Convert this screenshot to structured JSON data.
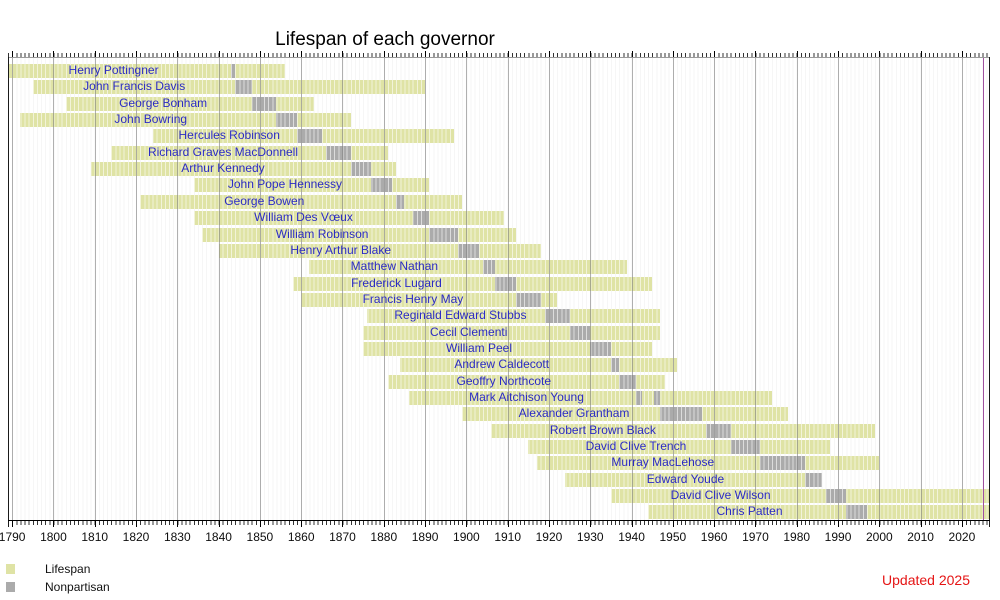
{
  "title": "Lifespan of each governor",
  "legend": {
    "items": [
      {
        "label": "Lifespan",
        "color": "#dfe3a5"
      },
      {
        "label": "Nonpartisan",
        "color": "#ababab"
      }
    ]
  },
  "footer_note": {
    "text": "Updated 2025",
    "color": "#e51414"
  },
  "chart_data": {
    "type": "timeline",
    "title": "Lifespan of each governor",
    "legend_position": "bottom-left",
    "grid": true,
    "x_axis": {
      "min": 1789,
      "max": 2026.8,
      "major_tick_interval": 10,
      "minor_tick_interval": 1,
      "tick_labels": [
        1790,
        1800,
        1810,
        1820,
        1830,
        1840,
        1850,
        1860,
        1870,
        1880,
        1890,
        1900,
        1910,
        1920,
        1930,
        1940,
        1950,
        1960,
        1970,
        1980,
        1990,
        2000,
        2010,
        2020
      ]
    },
    "present_line_year": 2025,
    "colors": {
      "lifespan_bar": "#dfe3a5",
      "nonpartisan_bar": "#ababab",
      "name_text": "#2b2bc4",
      "present_line": "#a050a0",
      "updated_note": "#e51414"
    },
    "governors": [
      {
        "name": "Henry Pottingner",
        "born": 1789,
        "died": 1856,
        "terms": [
          [
            1843,
            1844
          ]
        ]
      },
      {
        "name": "John Francis Davis",
        "born": 1795,
        "died": 1890,
        "terms": [
          [
            1844,
            1848
          ]
        ]
      },
      {
        "name": "George Bonham",
        "born": 1803,
        "died": 1863,
        "terms": [
          [
            1848,
            1854
          ]
        ]
      },
      {
        "name": "John Bowring",
        "born": 1792,
        "died": 1872,
        "terms": [
          [
            1854,
            1859
          ]
        ]
      },
      {
        "name": "Hercules Robinson",
        "born": 1824,
        "died": 1897,
        "terms": [
          [
            1859,
            1865
          ]
        ]
      },
      {
        "name": "Richard Graves MacDonnell",
        "born": 1814,
        "died": 1881,
        "terms": [
          [
            1866,
            1872
          ]
        ]
      },
      {
        "name": "Arthur Kennedy",
        "born": 1809,
        "died": 1883,
        "terms": [
          [
            1872,
            1877
          ]
        ]
      },
      {
        "name": "John Pope Hennessy",
        "born": 1834,
        "died": 1891,
        "terms": [
          [
            1877,
            1882
          ]
        ]
      },
      {
        "name": "George Bowen",
        "born": 1821,
        "died": 1899,
        "terms": [
          [
            1883,
            1885
          ]
        ]
      },
      {
        "name": "William Des Vœux",
        "born": 1834,
        "died": 1909,
        "terms": [
          [
            1887,
            1891
          ]
        ]
      },
      {
        "name": "William Robinson",
        "born": 1836,
        "died": 1912,
        "terms": [
          [
            1891,
            1898
          ]
        ]
      },
      {
        "name": "Henry Arthur Blake",
        "born": 1840,
        "died": 1918,
        "terms": [
          [
            1898,
            1903
          ]
        ]
      },
      {
        "name": "Matthew Nathan",
        "born": 1862,
        "died": 1939,
        "terms": [
          [
            1904,
            1907
          ]
        ]
      },
      {
        "name": "Frederick Lugard",
        "born": 1858,
        "died": 1945,
        "terms": [
          [
            1907,
            1912
          ]
        ]
      },
      {
        "name": "Francis Henry May",
        "born": 1860,
        "died": 1922,
        "terms": [
          [
            1912,
            1918
          ]
        ]
      },
      {
        "name": "Reginald Edward Stubbs",
        "born": 1876,
        "died": 1947,
        "terms": [
          [
            1919,
            1925
          ]
        ]
      },
      {
        "name": "Cecil Clementi",
        "born": 1875,
        "died": 1947,
        "terms": [
          [
            1925,
            1930
          ]
        ]
      },
      {
        "name": "William Peel",
        "born": 1875,
        "died": 1945,
        "terms": [
          [
            1930,
            1935
          ]
        ]
      },
      {
        "name": "Andrew Caldecott",
        "born": 1884,
        "died": 1951,
        "terms": [
          [
            1935,
            1937
          ]
        ]
      },
      {
        "name": "Geoffry Northcote",
        "born": 1881,
        "died": 1948,
        "terms": [
          [
            1937,
            1941
          ]
        ]
      },
      {
        "name": "Mark Aitchison Young",
        "born": 1886,
        "died": 1974,
        "terms": [
          [
            1941,
            1942.5
          ],
          [
            1945.5,
            1947
          ]
        ]
      },
      {
        "name": "Alexander Grantham",
        "born": 1899,
        "died": 1978,
        "terms": [
          [
            1947,
            1957
          ]
        ]
      },
      {
        "name": "Robert Brown Black",
        "born": 1906,
        "died": 1999,
        "terms": [
          [
            1958,
            1964
          ]
        ]
      },
      {
        "name": "David Clive Trench",
        "born": 1915,
        "died": 1988,
        "terms": [
          [
            1964,
            1971
          ]
        ]
      },
      {
        "name": "Murray MacLehose",
        "born": 1917,
        "died": 2000,
        "terms": [
          [
            1971,
            1982
          ]
        ]
      },
      {
        "name": "Edward Youde",
        "born": 1924,
        "died": 1986,
        "terms": [
          [
            1982,
            1986
          ]
        ]
      },
      {
        "name": "David Clive Wilson",
        "born": 1935,
        "died": null,
        "terms": [
          [
            1987,
            1992
          ]
        ]
      },
      {
        "name": "Chris Patten",
        "born": 1944,
        "died": null,
        "terms": [
          [
            1992,
            1997
          ]
        ]
      }
    ]
  }
}
